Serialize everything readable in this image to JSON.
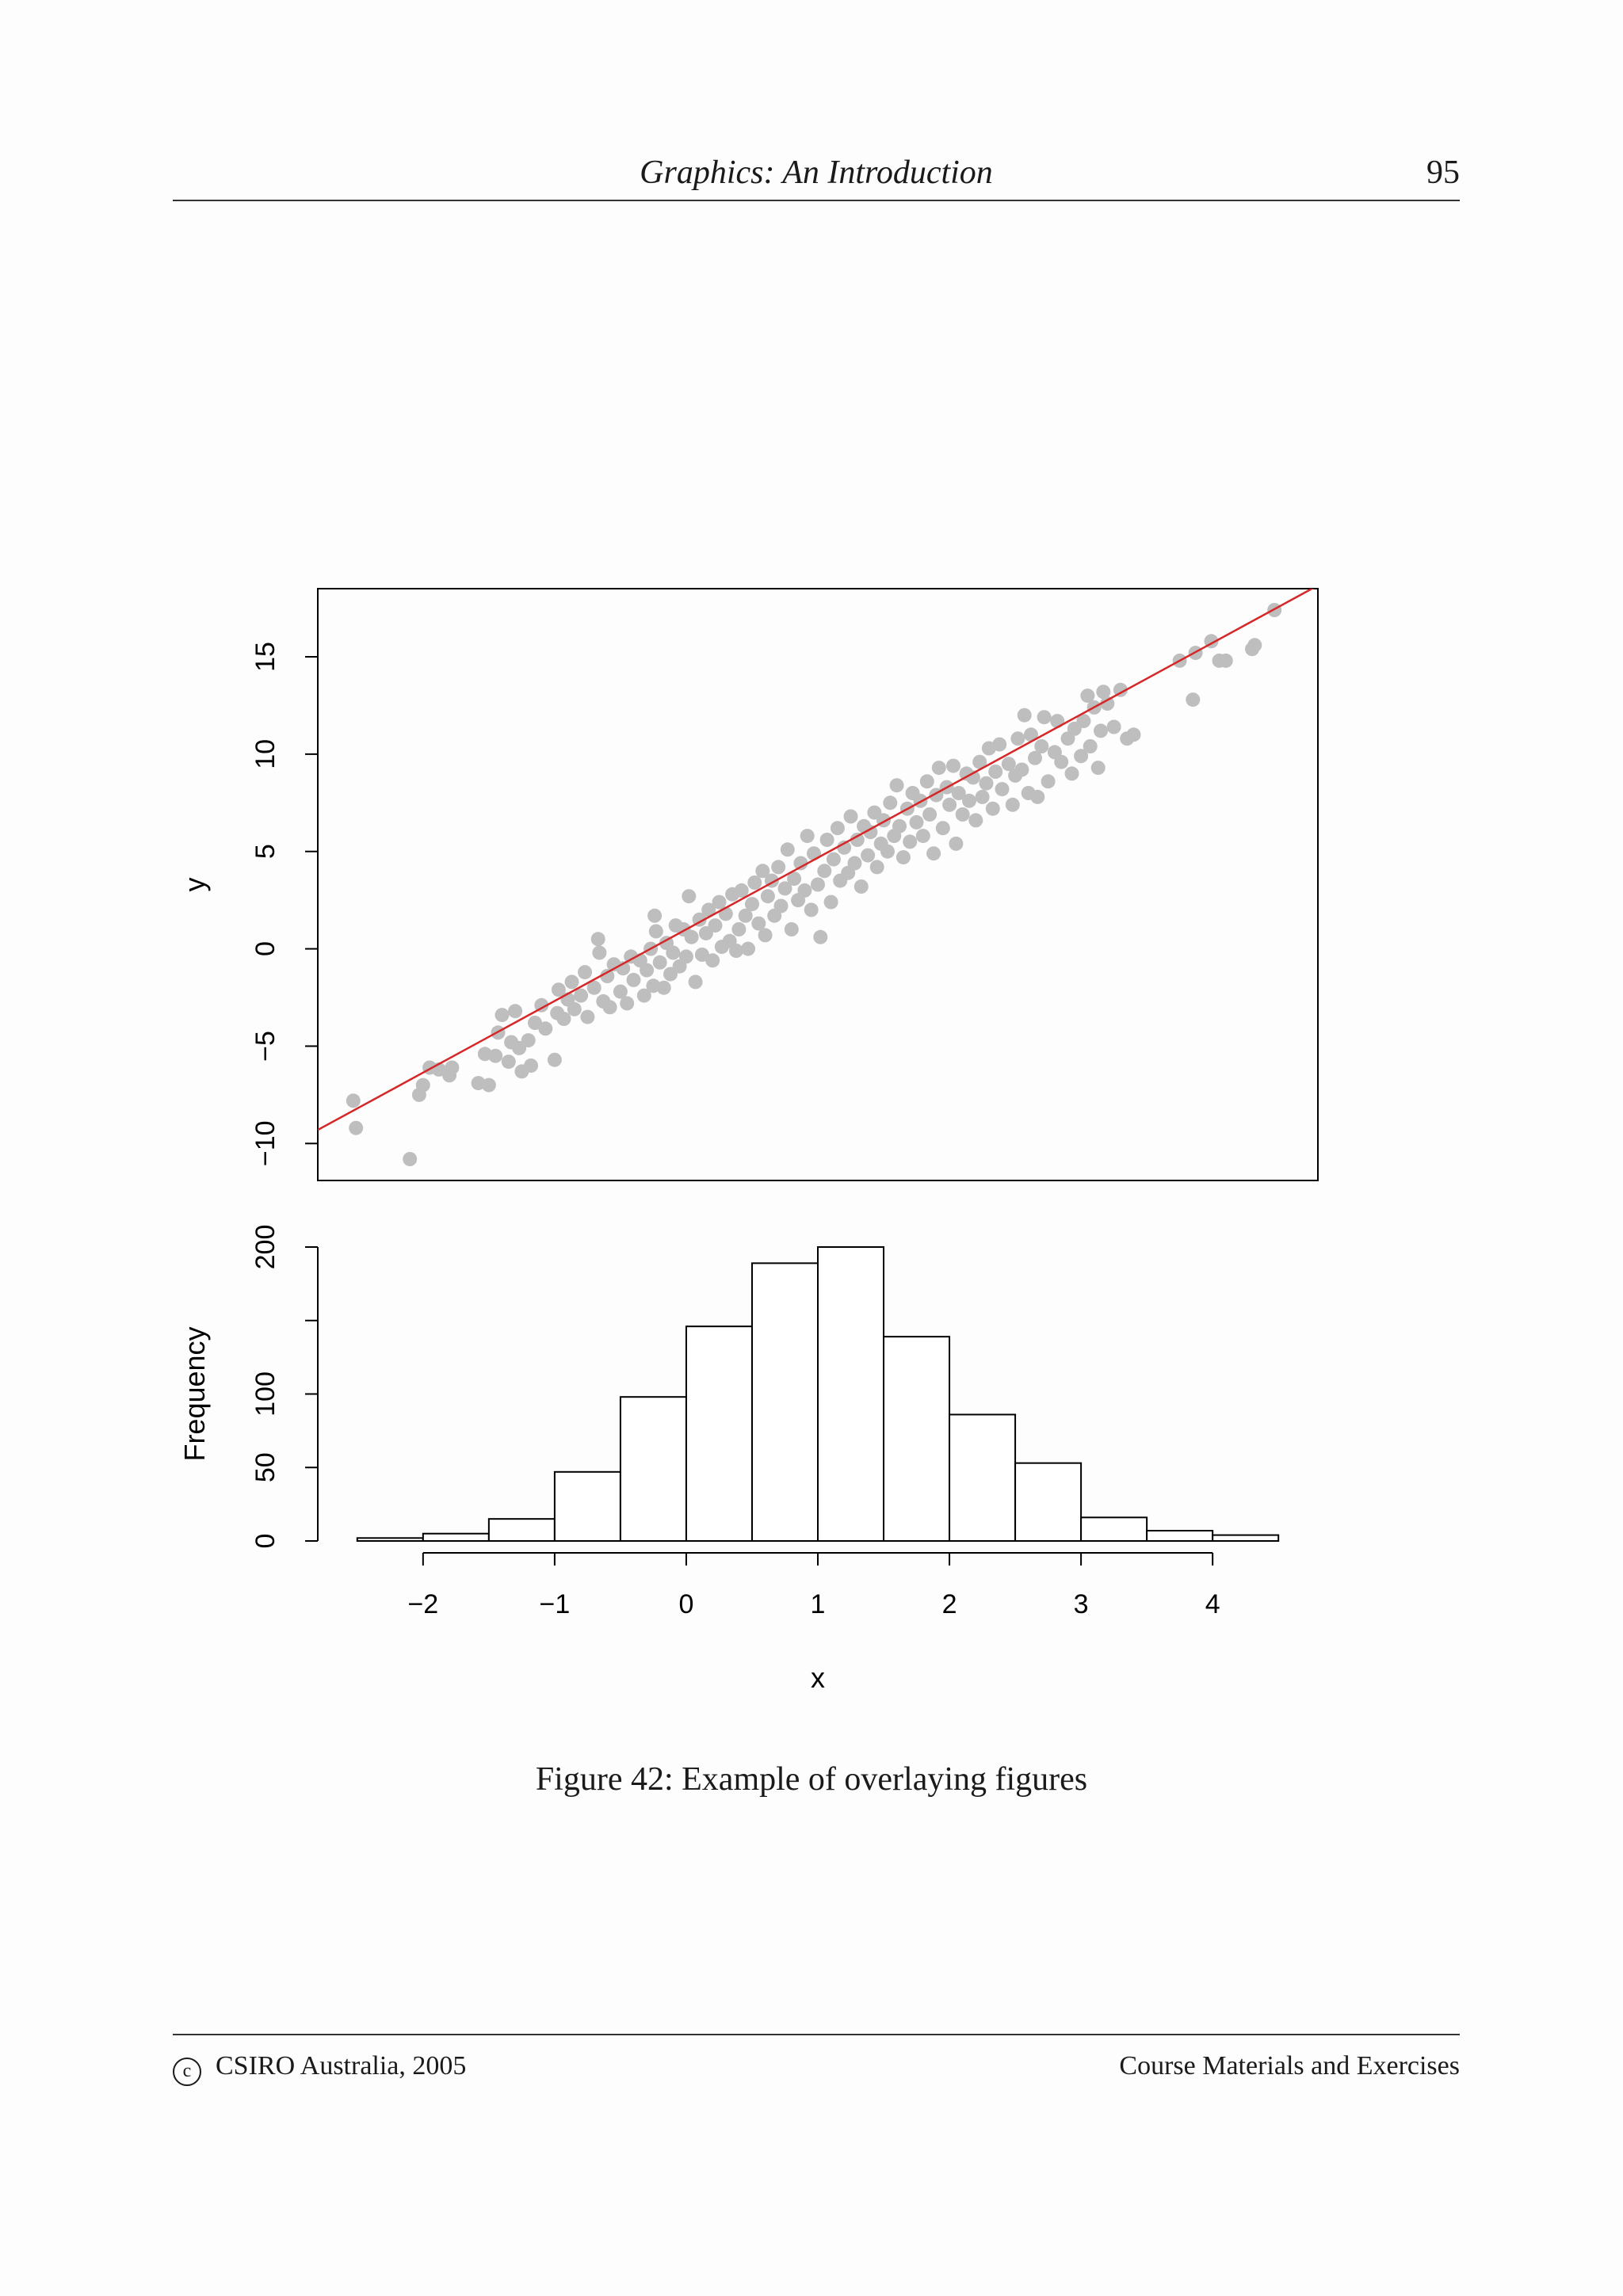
{
  "header": {
    "title": "Graphics: An Introduction",
    "page_number": "95"
  },
  "caption": "Figure 42: Example of overlaying figures",
  "footer": {
    "copyright_symbol": "c",
    "copyright_text": "CSIRO Australia, 2005",
    "right_text": "Course Materials and Exercises"
  },
  "chart_data": [
    {
      "type": "scatter",
      "title": "",
      "xlabel": "",
      "ylabel": "y",
      "xlim": [
        -2.8,
        4.8
      ],
      "ylim": [
        -11.9,
        18.5
      ],
      "y_ticks": [
        -10,
        -5,
        0,
        5,
        10,
        15
      ],
      "y_tick_labels": [
        "−10",
        "−5",
        "0",
        "5",
        "10",
        "15"
      ],
      "point_color": "#bebebe",
      "fit_line": {
        "color": "#d62728",
        "intercept": 1.0,
        "slope": 3.68
      },
      "points": [
        [
          -2.53,
          -7.8
        ],
        [
          -2.51,
          -9.2
        ],
        [
          -2.1,
          -10.8
        ],
        [
          -2.03,
          -7.5
        ],
        [
          -2.0,
          -7.0
        ],
        [
          -1.95,
          -6.1
        ],
        [
          -1.88,
          -6.2
        ],
        [
          -1.8,
          -6.5
        ],
        [
          -1.78,
          -6.1
        ],
        [
          -1.58,
          -6.9
        ],
        [
          -1.53,
          -5.4
        ],
        [
          -1.5,
          -7.0
        ],
        [
          -1.45,
          -5.5
        ],
        [
          -1.43,
          -4.3
        ],
        [
          -1.4,
          -3.4
        ],
        [
          -1.35,
          -5.8
        ],
        [
          -1.33,
          -4.8
        ],
        [
          -1.3,
          -3.2
        ],
        [
          -1.27,
          -5.1
        ],
        [
          -1.25,
          -6.3
        ],
        [
          -1.2,
          -4.7
        ],
        [
          -1.18,
          -6.0
        ],
        [
          -1.15,
          -3.8
        ],
        [
          -1.1,
          -2.9
        ],
        [
          -1.07,
          -4.1
        ],
        [
          -1.0,
          -5.7
        ],
        [
          -0.98,
          -3.3
        ],
        [
          -0.97,
          -2.1
        ],
        [
          -0.93,
          -3.6
        ],
        [
          -0.9,
          -2.6
        ],
        [
          -0.87,
          -1.7
        ],
        [
          -0.85,
          -3.1
        ],
        [
          -0.8,
          -2.4
        ],
        [
          -0.77,
          -1.2
        ],
        [
          -0.75,
          -3.5
        ],
        [
          -0.7,
          -2.0
        ],
        [
          -0.67,
          0.5
        ],
        [
          -0.66,
          -0.2
        ],
        [
          -0.63,
          -2.7
        ],
        [
          -0.6,
          -1.4
        ],
        [
          -0.58,
          -3.0
        ],
        [
          -0.55,
          -0.8
        ],
        [
          -0.5,
          -2.2
        ],
        [
          -0.48,
          -1.0
        ],
        [
          -0.45,
          -2.8
        ],
        [
          -0.42,
          -0.4
        ],
        [
          -0.4,
          -1.6
        ],
        [
          -0.35,
          -0.6
        ],
        [
          -0.32,
          -2.4
        ],
        [
          -0.3,
          -1.1
        ],
        [
          -0.27,
          0.0
        ],
        [
          -0.25,
          -1.9
        ],
        [
          -0.24,
          1.7
        ],
        [
          -0.23,
          0.9
        ],
        [
          -0.2,
          -0.7
        ],
        [
          -0.17,
          -2.0
        ],
        [
          -0.15,
          0.3
        ],
        [
          -0.12,
          -1.3
        ],
        [
          -0.1,
          -0.2
        ],
        [
          -0.08,
          1.2
        ],
        [
          -0.05,
          -0.9
        ],
        [
          -0.02,
          1.0
        ],
        [
          0.0,
          -0.4
        ],
        [
          0.02,
          2.7
        ],
        [
          0.04,
          0.6
        ],
        [
          0.07,
          -1.7
        ],
        [
          0.1,
          1.5
        ],
        [
          0.12,
          -0.3
        ],
        [
          0.15,
          0.8
        ],
        [
          0.17,
          2.0
        ],
        [
          0.2,
          -0.6
        ],
        [
          0.22,
          1.2
        ],
        [
          0.25,
          2.4
        ],
        [
          0.27,
          0.1
        ],
        [
          0.3,
          1.8
        ],
        [
          0.33,
          0.4
        ],
        [
          0.35,
          2.8
        ],
        [
          0.38,
          -0.1
        ],
        [
          0.4,
          1.0
        ],
        [
          0.42,
          3.0
        ],
        [
          0.45,
          1.7
        ],
        [
          0.47,
          0.0
        ],
        [
          0.5,
          2.3
        ],
        [
          0.52,
          3.4
        ],
        [
          0.55,
          1.3
        ],
        [
          0.58,
          4.0
        ],
        [
          0.6,
          0.7
        ],
        [
          0.62,
          2.7
        ],
        [
          0.65,
          3.5
        ],
        [
          0.67,
          1.7
        ],
        [
          0.7,
          4.2
        ],
        [
          0.72,
          2.2
        ],
        [
          0.75,
          3.1
        ],
        [
          0.77,
          5.1
        ],
        [
          0.8,
          1.0
        ],
        [
          0.82,
          3.6
        ],
        [
          0.85,
          2.5
        ],
        [
          0.87,
          4.4
        ],
        [
          0.9,
          3.0
        ],
        [
          0.92,
          5.8
        ],
        [
          0.95,
          2.0
        ],
        [
          0.97,
          4.9
        ],
        [
          1.0,
          3.3
        ],
        [
          1.02,
          0.6
        ],
        [
          1.05,
          4.0
        ],
        [
          1.07,
          5.6
        ],
        [
          1.1,
          2.4
        ],
        [
          1.12,
          4.6
        ],
        [
          1.15,
          6.2
        ],
        [
          1.17,
          3.5
        ],
        [
          1.2,
          5.2
        ],
        [
          1.23,
          3.9
        ],
        [
          1.25,
          6.8
        ],
        [
          1.28,
          4.4
        ],
        [
          1.3,
          5.6
        ],
        [
          1.33,
          3.2
        ],
        [
          1.35,
          6.3
        ],
        [
          1.38,
          4.8
        ],
        [
          1.4,
          6.0
        ],
        [
          1.43,
          7.0
        ],
        [
          1.45,
          4.2
        ],
        [
          1.48,
          5.4
        ],
        [
          1.5,
          6.6
        ],
        [
          1.53,
          5.0
        ],
        [
          1.55,
          7.5
        ],
        [
          1.58,
          5.8
        ],
        [
          1.6,
          8.4
        ],
        [
          1.62,
          6.3
        ],
        [
          1.65,
          4.7
        ],
        [
          1.68,
          7.2
        ],
        [
          1.7,
          5.5
        ],
        [
          1.72,
          8.0
        ],
        [
          1.75,
          6.5
        ],
        [
          1.78,
          7.6
        ],
        [
          1.8,
          5.8
        ],
        [
          1.83,
          8.6
        ],
        [
          1.85,
          6.9
        ],
        [
          1.88,
          4.9
        ],
        [
          1.9,
          7.9
        ],
        [
          1.92,
          9.3
        ],
        [
          1.95,
          6.2
        ],
        [
          1.98,
          8.3
        ],
        [
          2.0,
          7.4
        ],
        [
          2.03,
          9.4
        ],
        [
          2.05,
          5.4
        ],
        [
          2.07,
          8.0
        ],
        [
          2.1,
          6.9
        ],
        [
          2.13,
          9.0
        ],
        [
          2.15,
          7.6
        ],
        [
          2.18,
          8.8
        ],
        [
          2.2,
          6.6
        ],
        [
          2.23,
          9.6
        ],
        [
          2.25,
          7.8
        ],
        [
          2.28,
          8.5
        ],
        [
          2.3,
          10.3
        ],
        [
          2.33,
          7.2
        ],
        [
          2.35,
          9.1
        ],
        [
          2.38,
          10.5
        ],
        [
          2.4,
          8.2
        ],
        [
          2.45,
          9.5
        ],
        [
          2.48,
          7.4
        ],
        [
          2.5,
          8.9
        ],
        [
          2.52,
          10.8
        ],
        [
          2.55,
          9.2
        ],
        [
          2.57,
          12.0
        ],
        [
          2.6,
          8.0
        ],
        [
          2.62,
          11.0
        ],
        [
          2.65,
          9.8
        ],
        [
          2.67,
          7.8
        ],
        [
          2.7,
          10.4
        ],
        [
          2.72,
          11.9
        ],
        [
          2.75,
          8.6
        ],
        [
          2.8,
          10.1
        ],
        [
          2.82,
          11.7
        ],
        [
          2.85,
          9.6
        ],
        [
          2.9,
          10.8
        ],
        [
          2.93,
          9.0
        ],
        [
          2.95,
          11.3
        ],
        [
          3.0,
          9.9
        ],
        [
          3.02,
          11.7
        ],
        [
          3.05,
          13.0
        ],
        [
          3.07,
          10.4
        ],
        [
          3.1,
          12.4
        ],
        [
          3.13,
          9.3
        ],
        [
          3.15,
          11.2
        ],
        [
          3.17,
          13.2
        ],
        [
          3.2,
          12.6
        ],
        [
          3.25,
          11.4
        ],
        [
          3.3,
          13.3
        ],
        [
          3.35,
          10.8
        ],
        [
          3.4,
          11.0
        ],
        [
          3.75,
          14.8
        ],
        [
          3.85,
          12.8
        ],
        [
          3.87,
          15.2
        ],
        [
          3.99,
          15.8
        ],
        [
          4.05,
          14.8
        ],
        [
          4.1,
          14.8
        ],
        [
          4.3,
          15.4
        ],
        [
          4.32,
          15.6
        ],
        [
          4.47,
          17.4
        ]
      ]
    },
    {
      "type": "bar",
      "subtype": "histogram",
      "title": "",
      "xlabel": "x",
      "ylabel": "Frequency",
      "bin_edges": [
        -2.5,
        -2.0,
        -1.5,
        -1.0,
        -0.5,
        0.0,
        0.5,
        1.0,
        1.5,
        2.0,
        2.5,
        3.0,
        3.5,
        4.0,
        4.5
      ],
      "values": [
        2,
        5,
        15,
        47,
        98,
        146,
        189,
        200,
        139,
        86,
        53,
        16,
        7,
        4
      ],
      "ylim": [
        0,
        200
      ],
      "y_ticks": [
        0,
        50,
        100,
        150,
        200
      ],
      "y_tick_labels": [
        "0",
        "50",
        "100",
        "",
        "200"
      ],
      "x_ticks": [
        -2,
        -1,
        0,
        1,
        2,
        3,
        4
      ],
      "x_tick_labels": [
        "−2",
        "−1",
        "0",
        "1",
        "2",
        "3",
        "4"
      ]
    }
  ]
}
